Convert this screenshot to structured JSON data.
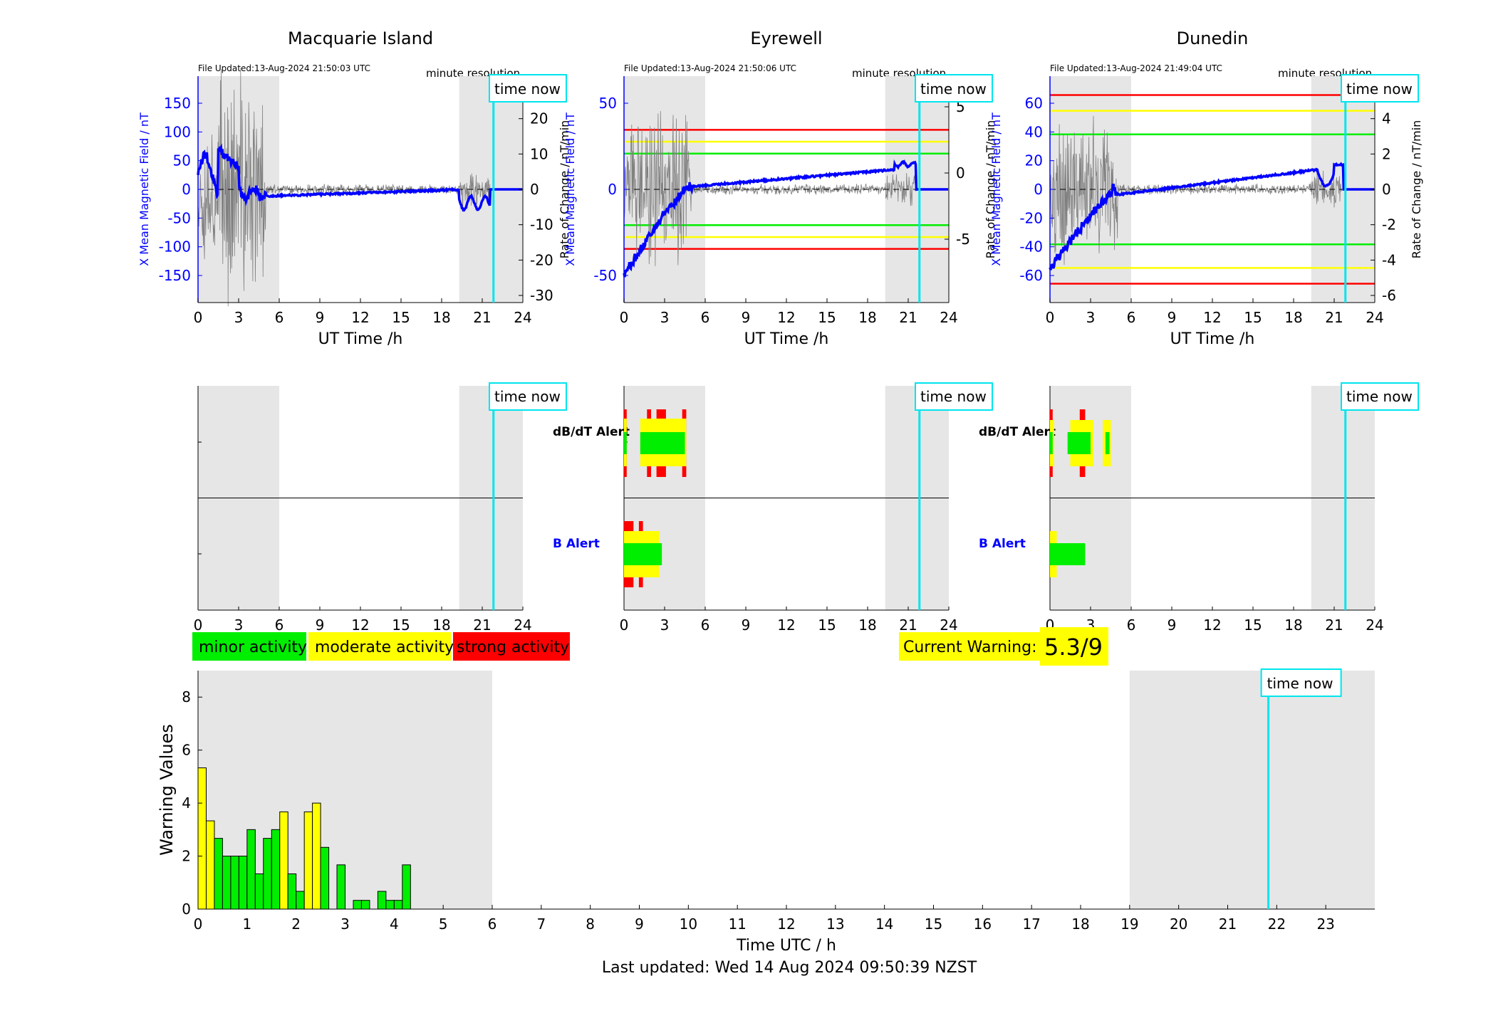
{
  "colors": {
    "field": "#0000ff",
    "rate": "#808080",
    "night": "#e6e6e6",
    "time_now": "#00e5ee",
    "minor": "#00ee00",
    "moderate": "#ffff00",
    "strong": "#ff0000"
  },
  "labels": {
    "time_now": "time now",
    "minute_resolution": "minute resolution",
    "ut_time": "UT Time /h",
    "ylabel_field": "X Mean Magnetic Field / nT",
    "ylabel_rate": "Rate of Change / nT/min",
    "dbdt_alert": "dB/dT Alert",
    "b_alert": "B Alert"
  },
  "stations": [
    {
      "title": "Macquarie Island",
      "file_updated": "File Updated:13-Aug-2024 21:50:03 UTC",
      "left_ticks": [
        "150",
        "100",
        "50",
        "0",
        "-50",
        "-100",
        "-150"
      ],
      "right_ticks": [
        "30",
        "20",
        "10",
        "0",
        "-10",
        "-20",
        "-30"
      ],
      "thresholds": [],
      "dbdt_alert": false,
      "b_alert": false
    },
    {
      "title": "Eyrewell",
      "file_updated": "File Updated:13-Aug-2024 21:50:06 UTC",
      "left_ticks": [
        "50",
        "0",
        "-50"
      ],
      "right_ticks": [
        "5",
        "0",
        "-5"
      ],
      "thresholds": [
        {
          "level": 50,
          "color": "red"
        },
        {
          "level": 40,
          "color": "yellow"
        },
        {
          "level": 30,
          "color": "green"
        },
        {
          "level": -30,
          "color": "green"
        },
        {
          "level": -40,
          "color": "yellow"
        },
        {
          "level": -50,
          "color": "red"
        }
      ],
      "dbdt_alert": true,
      "b_alert": true
    },
    {
      "title": "Dunedin",
      "file_updated": "File Updated:13-Aug-2024 21:49:04 UTC",
      "left_ticks": [
        "60",
        "40",
        "20",
        "0",
        "-20",
        "-40",
        "-60"
      ],
      "right_ticks": [
        "6",
        "4",
        "2",
        "0",
        "-2",
        "-4",
        "-6"
      ],
      "thresholds": [
        {
          "level": 60,
          "color": "red"
        },
        {
          "level": 50,
          "color": "yellow"
        },
        {
          "level": 35,
          "color": "green"
        },
        {
          "level": -35,
          "color": "green"
        },
        {
          "level": -50,
          "color": "yellow"
        },
        {
          "level": -60,
          "color": "red"
        }
      ],
      "dbdt_alert": true,
      "b_alert": true
    }
  ],
  "x_ticks": [
    "0",
    "3",
    "6",
    "9",
    "12",
    "15",
    "18",
    "21",
    "24"
  ],
  "legend": {
    "minor": "minor activity",
    "moderate": "moderate activity",
    "strong": "strong activity"
  },
  "current_warning": {
    "label": "Current Warning:",
    "value": "5.3/9"
  },
  "footer": "Last updated: Wed 14 Aug 2024 09:50:39 NZST",
  "chart_data": {
    "type": "bar",
    "xlabel": "Time UTC / h",
    "ylabel": "Warning Values",
    "xlim": [
      0,
      24
    ],
    "ylim": [
      0,
      9
    ],
    "x_ticks": [
      "0",
      "1",
      "2",
      "3",
      "4",
      "5",
      "6",
      "7",
      "8",
      "9",
      "10",
      "11",
      "12",
      "13",
      "14",
      "15",
      "16",
      "17",
      "18",
      "19",
      "20",
      "21",
      "22",
      "23"
    ],
    "y_ticks": [
      "0",
      "2",
      "4",
      "6",
      "8"
    ],
    "bar_width_h": 0.1667,
    "night_shading": [
      [
        0,
        6
      ],
      [
        19,
        24
      ]
    ],
    "time_now_h": 21.83,
    "bars": [
      {
        "t": 0.0,
        "v": 5.33,
        "level": "moderate"
      },
      {
        "t": 0.167,
        "v": 3.33,
        "level": "moderate"
      },
      {
        "t": 0.333,
        "v": 2.67,
        "level": "minor"
      },
      {
        "t": 0.5,
        "v": 2.0,
        "level": "minor"
      },
      {
        "t": 0.667,
        "v": 2.0,
        "level": "minor"
      },
      {
        "t": 0.833,
        "v": 2.0,
        "level": "minor"
      },
      {
        "t": 1.0,
        "v": 3.0,
        "level": "minor"
      },
      {
        "t": 1.167,
        "v": 1.33,
        "level": "minor"
      },
      {
        "t": 1.333,
        "v": 2.67,
        "level": "minor"
      },
      {
        "t": 1.5,
        "v": 3.0,
        "level": "minor"
      },
      {
        "t": 1.667,
        "v": 3.67,
        "level": "moderate"
      },
      {
        "t": 1.833,
        "v": 1.33,
        "level": "minor"
      },
      {
        "t": 2.0,
        "v": 0.67,
        "level": "minor"
      },
      {
        "t": 2.167,
        "v": 3.67,
        "level": "moderate"
      },
      {
        "t": 2.333,
        "v": 4.0,
        "level": "moderate"
      },
      {
        "t": 2.5,
        "v": 2.33,
        "level": "minor"
      },
      {
        "t": 2.833,
        "v": 1.67,
        "level": "minor"
      },
      {
        "t": 3.167,
        "v": 0.33,
        "level": "minor"
      },
      {
        "t": 3.333,
        "v": 0.33,
        "level": "minor"
      },
      {
        "t": 3.667,
        "v": 0.67,
        "level": "minor"
      },
      {
        "t": 3.833,
        "v": 0.33,
        "level": "minor"
      },
      {
        "t": 4.0,
        "v": 0.33,
        "level": "minor"
      },
      {
        "t": 4.167,
        "v": 1.67,
        "level": "minor"
      }
    ]
  }
}
